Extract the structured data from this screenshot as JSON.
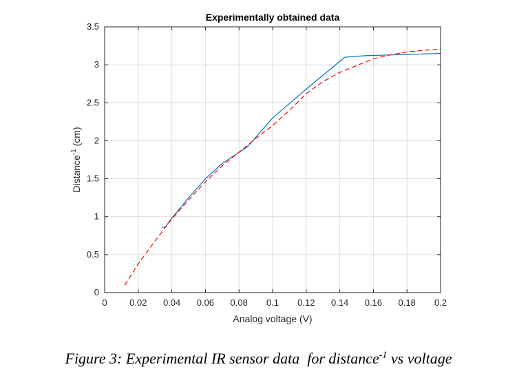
{
  "chart_data": {
    "type": "line",
    "title": "Experimentally obtained data",
    "xlabel": "Analog voltage (V)",
    "ylabel": {
      "text": "Distance",
      "superscript": "-1",
      "unit": " (cm)"
    },
    "xlim": [
      0,
      0.2
    ],
    "ylim": [
      0,
      3.5
    ],
    "xticks": [
      "0",
      "0.02",
      "0.04",
      "0.06",
      "0.08",
      "0.1",
      "0.12",
      "0.14",
      "0.16",
      "0.18",
      "0.2"
    ],
    "yticks": [
      "0",
      "0.5",
      "1",
      "1.5",
      "2",
      "2.5",
      "3",
      "3.5"
    ],
    "grid": true,
    "series": [
      {
        "color": "#0072BD",
        "style": "solid",
        "x": [
          0.034,
          0.036,
          0.04,
          0.05,
          0.06,
          0.07,
          0.085,
          0.1,
          0.12,
          0.143,
          0.155,
          0.17,
          0.2
        ],
        "y": [
          0.86,
          0.86,
          0.98,
          1.25,
          1.5,
          1.7,
          1.92,
          2.3,
          2.68,
          3.1,
          3.12,
          3.13,
          3.15
        ]
      },
      {
        "color": "#FF0000",
        "style": "dashed",
        "x": [
          0.012,
          0.02,
          0.03,
          0.04,
          0.05,
          0.06,
          0.07,
          0.08,
          0.09,
          0.1,
          0.11,
          0.12,
          0.13,
          0.14,
          0.15,
          0.16,
          0.17,
          0.18,
          0.19,
          0.2
        ],
        "y": [
          0.1,
          0.38,
          0.68,
          0.97,
          1.22,
          1.46,
          1.67,
          1.85,
          2.03,
          2.2,
          2.4,
          2.62,
          2.78,
          2.9,
          2.99,
          3.08,
          3.13,
          3.17,
          3.19,
          3.21
        ]
      }
    ]
  },
  "caption": {
    "before": "Figure 3: Experimental IR sensor data  for distance",
    "superscript": "-1",
    "after": " vs voltage"
  }
}
